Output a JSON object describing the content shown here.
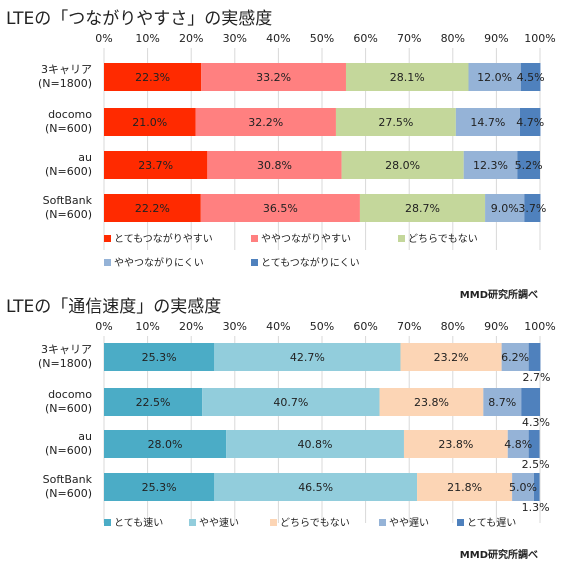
{
  "chart_data": [
    {
      "type": "bar",
      "orientation": "horizontal",
      "stacked": true,
      "title": "LTEの「つながりやすさ」の実感度",
      "categories": [
        [
          "3キャリア",
          "(N=1800)"
        ],
        [
          "docomo",
          "(N=600)"
        ],
        [
          "au",
          "(N=600)"
        ],
        [
          "SoftBank",
          "(N=600)"
        ]
      ],
      "x_ticks": [
        "0%",
        "10%",
        "20%",
        "30%",
        "40%",
        "50%",
        "60%",
        "70%",
        "80%",
        "90%",
        "100%"
      ],
      "xlim": [
        0,
        100
      ],
      "legend_position": "bottom",
      "series": [
        {
          "name": "とてもつながりやすい",
          "color": "#ff2a00",
          "values": [
            22.3,
            21.0,
            23.7,
            22.2
          ],
          "labels": [
            "22.3%",
            "21.0%",
            "23.7%",
            "22.2%"
          ]
        },
        {
          "name": "ややつながりやすい",
          "color": "#ff8080",
          "values": [
            33.2,
            32.2,
            30.8,
            36.5
          ],
          "labels": [
            "33.2%",
            "32.2%",
            "30.8%",
            "36.5%"
          ]
        },
        {
          "name": "どちらでもない",
          "color": "#c4d79b",
          "values": [
            28.1,
            27.5,
            28.0,
            28.7
          ],
          "labels": [
            "28.1%",
            "27.5%",
            "28.0%",
            "28.7%"
          ]
        },
        {
          "name": "ややつながりにくい",
          "color": "#95b3d7",
          "values": [
            12.0,
            14.7,
            12.3,
            9.0
          ],
          "labels": [
            "12.0%",
            "14.7%",
            "12.3%",
            "9.0%"
          ]
        },
        {
          "name": "とてもつながりにくい",
          "color": "#4f81bd",
          "values": [
            4.5,
            4.7,
            5.2,
            3.7
          ],
          "labels": [
            "4.5%",
            "4.7%",
            "5.2%",
            "3.7%"
          ]
        }
      ],
      "source": "MMD研究所調べ"
    },
    {
      "type": "bar",
      "orientation": "horizontal",
      "stacked": true,
      "title": "LTEの「通信速度」の実感度",
      "categories": [
        [
          "3キャリア",
          "(N=1800)"
        ],
        [
          "docomo",
          "(N=600)"
        ],
        [
          "au",
          "(N=600)"
        ],
        [
          "SoftBank",
          "(N=600)"
        ]
      ],
      "x_ticks": [
        "0%",
        "10%",
        "20%",
        "30%",
        "40%",
        "50%",
        "60%",
        "70%",
        "80%",
        "90%",
        "100%"
      ],
      "xlim": [
        0,
        100
      ],
      "legend_position": "bottom",
      "series": [
        {
          "name": "とても速い",
          "color": "#4bacc6",
          "values": [
            25.3,
            22.5,
            28.0,
            25.3
          ],
          "labels": [
            "25.3%",
            "22.5%",
            "28.0%",
            "25.3%"
          ]
        },
        {
          "name": "やや速い",
          "color": "#92cddc",
          "values": [
            42.7,
            40.7,
            40.8,
            46.5
          ],
          "labels": [
            "42.7%",
            "40.7%",
            "40.8%",
            "46.5%"
          ]
        },
        {
          "name": "どちらでもない",
          "color": "#fcd5b5",
          "values": [
            23.2,
            23.8,
            23.8,
            21.8
          ],
          "labels": [
            "23.2%",
            "23.8%",
            "23.8%",
            "21.8%"
          ]
        },
        {
          "name": "やや遅い",
          "color": "#95b3d7",
          "values": [
            6.2,
            8.7,
            4.8,
            5.0
          ],
          "labels": [
            "6.2%",
            "8.7%",
            "4.8%",
            "5.0%"
          ]
        },
        {
          "name": "とても遅い",
          "color": "#4f81bd",
          "values": [
            2.7,
            4.3,
            2.5,
            1.3
          ],
          "labels": [
            "2.7%",
            "4.3%",
            "2.5%",
            "1.3%"
          ]
        }
      ],
      "source": "MMD研究所調べ"
    }
  ]
}
